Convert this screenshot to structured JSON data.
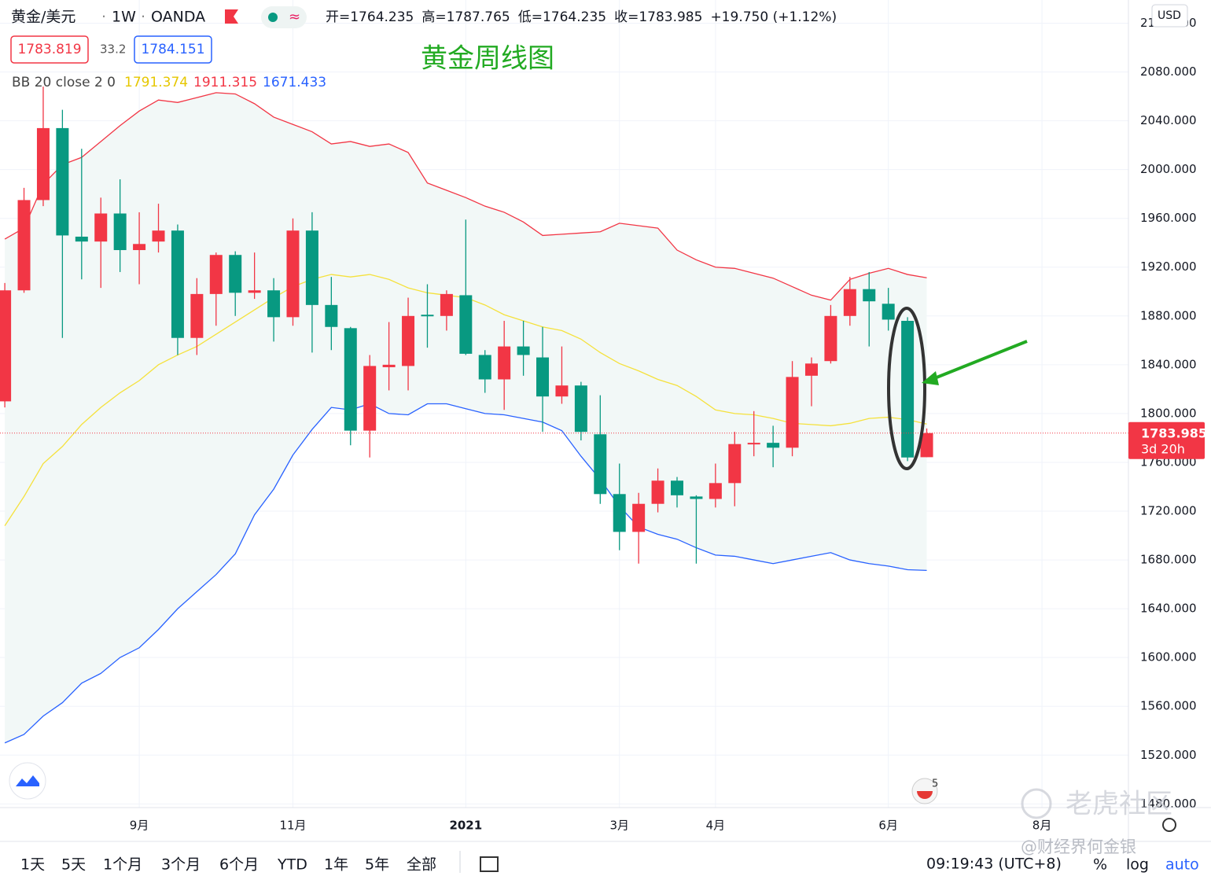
{
  "header": {
    "symbol": "黄金/美元",
    "interval": "1W",
    "exchange": "OANDA",
    "ohlc": [
      "开=1764.235",
      "高=1787.765",
      "低=1764.235",
      "收=1783.985",
      "+19.750 (+1.12%)"
    ],
    "bid": 1783.819,
    "spread": "33.2",
    "ask": "1784.151"
  },
  "indicator": {
    "label": "BB 20 close 2 0",
    "values": [
      1791.374,
      1911.315,
      1671.433
    ]
  },
  "chart_data": {
    "type": "candlestick",
    "title": "黄金周线图",
    "currency": "USD",
    "up_color": "#f23645",
    "down_color": "#089981",
    "open": [
      1810,
      1901,
      1975,
      2034,
      1945,
      1941,
      1964,
      1934,
      1941,
      1950,
      1862,
      1898,
      1930,
      1899,
      1901,
      1879,
      1950,
      1889,
      1870,
      1786,
      1838,
      1839,
      1881,
      1880,
      1897,
      1848,
      1828,
      1855,
      1846,
      1814,
      1823,
      1783,
      1734,
      1703,
      1726,
      1745,
      1732,
      1730,
      1743,
      1775,
      1776,
      1772,
      1831,
      1843,
      1880,
      1902,
      1890,
      1876,
      1764.235
    ],
    "high": [
      1907,
      1985,
      2068,
      2049,
      2017,
      1977,
      1992,
      1965,
      1972,
      1955,
      1911,
      1932,
      1933,
      1932,
      1911,
      1960,
      1965,
      1912,
      1871,
      1848,
      1875,
      1895,
      1906,
      1901,
      1959,
      1852,
      1876,
      1876,
      1871,
      1855,
      1826,
      1815,
      1759,
      1735,
      1755,
      1748,
      1733,
      1759,
      1785,
      1802,
      1790,
      1843,
      1846,
      1889,
      1912,
      1916,
      1903,
      1879,
      1787.765
    ],
    "low": [
      1805,
      1899,
      1970,
      1862,
      1910,
      1903,
      1916,
      1906,
      1932,
      1848,
      1848,
      1872,
      1880,
      1894,
      1859,
      1872,
      1850,
      1852,
      1774,
      1764,
      1819,
      1819,
      1854,
      1868,
      1848,
      1817,
      1803,
      1831,
      1785,
      1808,
      1778,
      1726,
      1688,
      1677,
      1719,
      1723,
      1677,
      1723,
      1724,
      1765,
      1756,
      1765,
      1806,
      1841,
      1872,
      1855,
      1868,
      1761,
      1764.235
    ],
    "close": [
      1901,
      1975,
      2034,
      1946,
      1941,
      1964,
      1934,
      1939,
      1950,
      1862,
      1898,
      1930,
      1899,
      1901,
      1879,
      1950,
      1889,
      1871,
      1786,
      1839,
      1840,
      1880,
      1880,
      1898,
      1849,
      1828,
      1855,
      1848,
      1814,
      1823,
      1785,
      1734,
      1703,
      1726,
      1745,
      1733,
      1730,
      1743,
      1775,
      1776,
      1772,
      1830,
      1841,
      1880,
      1902,
      1892,
      1877,
      1764,
      1783.985
    ],
    "bands": {
      "upper": [
        1943,
        1952,
        1988,
        2004,
        2010,
        2023,
        2036,
        2048,
        2057,
        2055,
        2059,
        2063,
        2062,
        2054,
        2043,
        2037,
        2031,
        2021,
        2023,
        2019,
        2021,
        2014,
        1989,
        1983,
        1977,
        1970,
        1965,
        1957,
        1946,
        1947,
        1948,
        1949,
        1956,
        1954,
        1952,
        1934,
        1926,
        1920,
        1919,
        1915,
        1911,
        1904,
        1897,
        1893,
        1910,
        1915,
        1919,
        1914,
        1911.315
      ],
      "middle": [
        1708,
        1732,
        1759,
        1773,
        1791,
        1805,
        1817,
        1827,
        1840,
        1848,
        1855,
        1865,
        1875,
        1885,
        1895,
        1904,
        1910,
        1914,
        1912,
        1914,
        1910,
        1903,
        1899,
        1897,
        1895,
        1889,
        1881,
        1876,
        1871,
        1868,
        1861,
        1850,
        1841,
        1835,
        1828,
        1823,
        1814,
        1803,
        1800,
        1799,
        1796,
        1792,
        1791,
        1790,
        1792,
        1796,
        1797,
        1795,
        1791.374
      ],
      "lower": [
        1530,
        1537,
        1552,
        1563,
        1579,
        1587,
        1600,
        1608,
        1623,
        1640,
        1654,
        1668,
        1685,
        1717,
        1738,
        1766,
        1787,
        1805,
        1803,
        1808,
        1800,
        1799,
        1808,
        1808,
        1804,
        1800,
        1799,
        1796,
        1793,
        1786,
        1765,
        1746,
        1724,
        1707,
        1701,
        1697,
        1690,
        1684,
        1683,
        1680,
        1677,
        1680,
        1683,
        1686,
        1680,
        1677,
        1675,
        1672,
        1671.433
      ]
    },
    "band_colors": {
      "upper": "#f23645",
      "middle": "#f5e13c",
      "lower": "#2962ff",
      "fill": "#f2f8f7"
    },
    "xlim": [
      -0.25,
      58.5
    ],
    "xticks": [
      {
        "value": 7,
        "label": "9月"
      },
      {
        "value": 15,
        "label": "11月"
      },
      {
        "value": 24,
        "label": "2021"
      },
      {
        "value": 32,
        "label": "3月"
      },
      {
        "value": 37,
        "label": "4月"
      },
      {
        "value": 46,
        "label": "6月"
      },
      {
        "value": 54,
        "label": "8月"
      }
    ],
    "ylim": [
      1477,
      2139
    ],
    "yticks": [
      {
        "value": 1480,
        "label": "1480.000"
      },
      {
        "value": 1520,
        "label": "1520.000"
      },
      {
        "value": 1560,
        "label": "1560.000"
      },
      {
        "value": 1600,
        "label": "1600.000"
      },
      {
        "value": 1640,
        "label": "1640.000"
      },
      {
        "value": 1680,
        "label": "1680.000"
      },
      {
        "value": 1720,
        "label": "1720.000"
      },
      {
        "value": 1760,
        "label": "1760.000"
      },
      {
        "value": 1800,
        "label": "1800.000"
      },
      {
        "value": 1840,
        "label": "1840.000"
      },
      {
        "value": 1880,
        "label": "1880.000"
      },
      {
        "value": 1920,
        "label": "1920.000"
      },
      {
        "value": 1960,
        "label": "1960.000"
      },
      {
        "value": 2000,
        "label": "2000.000"
      },
      {
        "value": 2040,
        "label": "2040.000"
      },
      {
        "value": 2080,
        "label": "2080.000"
      },
      {
        "value": 2120,
        "label": "2120.000"
      }
    ],
    "grid": true,
    "last_price": 1783.985,
    "countdown": "3d 20h",
    "event_count": 5
  },
  "toolbar": {
    "ranges": [
      "1天",
      "5天",
      "1个月",
      "3个月",
      "6个月",
      "YTD",
      "1年",
      "5年",
      "全部"
    ],
    "clock": "09:19:43 (UTC+8)",
    "scale_options": [
      "%",
      "log",
      "auto"
    ]
  },
  "watermark": {
    "brand": "老虎社区",
    "credit": "@财经界何金银"
  }
}
